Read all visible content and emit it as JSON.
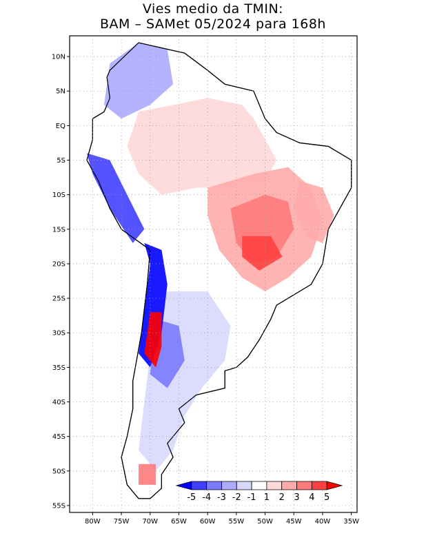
{
  "title": {
    "line1": "Vies medio da TMIN:",
    "line2": "BAM – SAMet 05/2024  para 168h"
  },
  "axes": {
    "lat_labels": [
      "10N",
      "5N",
      "EQ",
      "5S",
      "10S",
      "15S",
      "20S",
      "25S",
      "30S",
      "35S",
      "40S",
      "45S",
      "50S",
      "55S"
    ],
    "lat_values": [
      10,
      5,
      0,
      -5,
      -10,
      -15,
      -20,
      -25,
      -30,
      -35,
      -40,
      -45,
      -50,
      -55
    ],
    "lon_labels": [
      "80W",
      "75W",
      "70W",
      "65W",
      "60W",
      "55W",
      "50W",
      "45W",
      "40W",
      "35W"
    ],
    "lon_values": [
      -80,
      -75,
      -70,
      -65,
      -60,
      -55,
      -50,
      -45,
      -40,
      -35
    ],
    "lat_range": [
      -56,
      13
    ],
    "lon_range": [
      -84,
      -34
    ]
  },
  "colorbar": {
    "labels": [
      "-5",
      "-4",
      "-3",
      "-2",
      "-1",
      "1",
      "2",
      "3",
      "4",
      "5"
    ],
    "colors": [
      "#0000ff",
      "#4040ff",
      "#7a7aff",
      "#ababff",
      "#d8d8ff",
      "#ffffff",
      "#ffd8d8",
      "#ffabab",
      "#ff7a7a",
      "#ff4040",
      "#ff0000"
    ]
  },
  "regions": [
    {
      "name": "amazon",
      "points": [
        [
          -72,
          2
        ],
        [
          -66,
          3
        ],
        [
          -60,
          4
        ],
        [
          -54,
          3
        ],
        [
          -52,
          1
        ],
        [
          -50,
          -2
        ],
        [
          -48,
          -5
        ],
        [
          -50,
          -8
        ],
        [
          -56,
          -9
        ],
        [
          -62,
          -9
        ],
        [
          -68,
          -10
        ],
        [
          -72,
          -7
        ],
        [
          -74,
          -3
        ]
      ],
      "color": "#ffd8d8"
    },
    {
      "name": "central-brazil",
      "points": [
        [
          -60,
          -9
        ],
        [
          -52,
          -7
        ],
        [
          -46,
          -6
        ],
        [
          -42,
          -9
        ],
        [
          -40,
          -14
        ],
        [
          -42,
          -19
        ],
        [
          -46,
          -22
        ],
        [
          -50,
          -24
        ],
        [
          -54,
          -22
        ],
        [
          -58,
          -18
        ],
        [
          -60,
          -13
        ]
      ],
      "color": "#ffabab"
    },
    {
      "name": "central-hot",
      "points": [
        [
          -56,
          -12
        ],
        [
          -50,
          -10
        ],
        [
          -46,
          -11
        ],
        [
          -45,
          -15
        ],
        [
          -48,
          -19
        ],
        [
          -52,
          -20
        ],
        [
          -55,
          -17
        ]
      ],
      "color": "#ff7a7a"
    },
    {
      "name": "goias-core",
      "points": [
        [
          -54,
          -16
        ],
        [
          -49,
          -16
        ],
        [
          -47,
          -19
        ],
        [
          -51,
          -21
        ],
        [
          -54,
          -19
        ]
      ],
      "color": "#ff4040"
    },
    {
      "name": "east-brazil",
      "points": [
        [
          -44,
          -8
        ],
        [
          -40,
          -9
        ],
        [
          -38,
          -13
        ],
        [
          -40,
          -17
        ],
        [
          -43,
          -16
        ],
        [
          -45,
          -12
        ]
      ],
      "color": "#ffabab"
    },
    {
      "name": "argentina",
      "points": [
        [
          -67,
          -24
        ],
        [
          -60,
          -24
        ],
        [
          -56,
          -29
        ],
        [
          -57,
          -34
        ],
        [
          -61,
          -38
        ],
        [
          -64,
          -42
        ],
        [
          -66,
          -47
        ],
        [
          -69,
          -50
        ],
        [
          -72,
          -47
        ],
        [
          -71,
          -40
        ],
        [
          -70,
          -33
        ],
        [
          -68,
          -27
        ]
      ],
      "color": "#d8d8ff"
    },
    {
      "name": "argentina-west",
      "points": [
        [
          -69,
          -28
        ],
        [
          -65,
          -29
        ],
        [
          -64,
          -34
        ],
        [
          -67,
          -38
        ],
        [
          -70,
          -36
        ]
      ],
      "color": "#7a7aff"
    },
    {
      "name": "chile-strip",
      "points": [
        [
          -71,
          -17
        ],
        [
          -68,
          -18
        ],
        [
          -67,
          -23
        ],
        [
          -68,
          -30
        ],
        [
          -70,
          -35
        ],
        [
          -72,
          -33
        ],
        [
          -71,
          -27
        ],
        [
          -70,
          -20
        ]
      ],
      "color": "#0000ff"
    },
    {
      "name": "andes-red",
      "points": [
        [
          -70,
          -27
        ],
        [
          -68,
          -27
        ],
        [
          -68,
          -32
        ],
        [
          -69,
          -35
        ],
        [
          -71,
          -33
        ]
      ],
      "color": "#ff0000"
    },
    {
      "name": "peru-coast",
      "points": [
        [
          -81,
          -4
        ],
        [
          -77,
          -5
        ],
        [
          -74,
          -10
        ],
        [
          -71,
          -15
        ],
        [
          -73,
          -17
        ],
        [
          -77,
          -12
        ],
        [
          -80,
          -7
        ]
      ],
      "color": "#4040ff"
    },
    {
      "name": "colombia",
      "points": [
        [
          -77,
          9
        ],
        [
          -72,
          12
        ],
        [
          -67,
          11
        ],
        [
          -66,
          6
        ],
        [
          -70,
          3
        ],
        [
          -75,
          1
        ],
        [
          -78,
          3
        ]
      ],
      "color": "#ababff"
    },
    {
      "name": "patagonia-red",
      "points": [
        [
          -72,
          -49
        ],
        [
          -69,
          -49
        ],
        [
          -69,
          -52
        ],
        [
          -72,
          -52
        ]
      ],
      "color": "#ff7a7a"
    }
  ]
}
